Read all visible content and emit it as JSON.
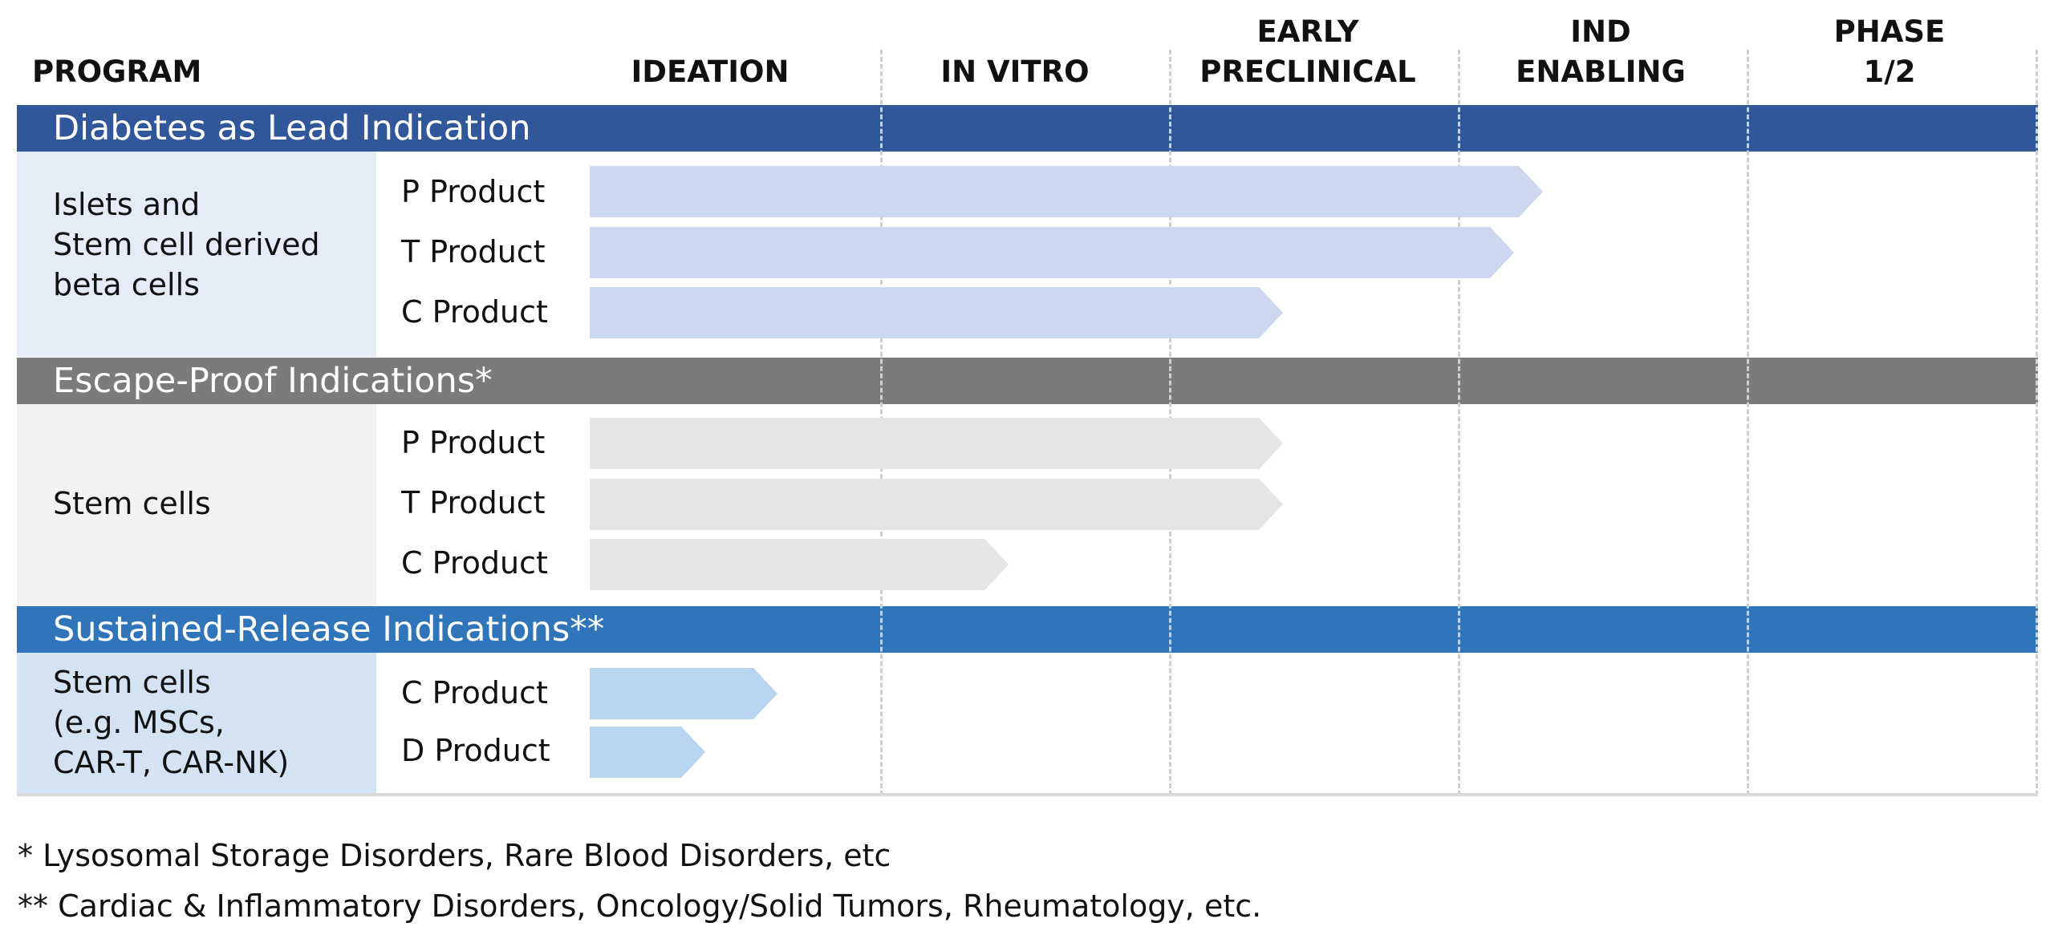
{
  "header": {
    "program": "PROGRAM",
    "stages": [
      "IDEATION",
      "IN VITRO",
      "EARLY\nPRECLINICAL",
      "IND\nENABLING",
      "PHASE\n1/2"
    ]
  },
  "sections": [
    {
      "title": "Diabetes as Lead Indication",
      "band_color": "#2F579A",
      "row_bg": "#E6ECF7",
      "bar_color": "#CCD8EF",
      "program": "Islets and\nStem cell derived\nbeta cells",
      "products": [
        {
          "label": "P Product",
          "progress": 3.3
        },
        {
          "label": "T Product",
          "progress": 3.2
        },
        {
          "label": "C Product",
          "progress": 2.4
        }
      ]
    },
    {
      "title": "Escape-Proof Indications*",
      "band_color": "#7B7B7B",
      "row_bg": "#F1F2F4",
      "bar_color": "#E6E5E6",
      "program": "Stem cells",
      "products": [
        {
          "label": "P Product",
          "progress": 2.4
        },
        {
          "label": "T Product",
          "progress": 2.4
        },
        {
          "label": "C Product",
          "progress": 1.45
        }
      ]
    },
    {
      "title": "Sustained-Release Indications**",
      "band_color": "#3075BA",
      "row_bg": "#D3E3F3",
      "bar_color": "#B8D4EE",
      "program": "Stem cells\n(e.g. MSCs,\nCAR-T, CAR-NK)",
      "products": [
        {
          "label": "C Product",
          "progress": 0.65
        },
        {
          "label": "D Product",
          "progress": 0.4
        }
      ]
    }
  ],
  "footnotes": [
    "* Lysosomal Storage Disorders, Rare Blood Disorders, etc",
    "** Cardiac & Inflammatory Disorders, Oncology/Solid Tumors, Rheumatology, etc."
  ]
}
